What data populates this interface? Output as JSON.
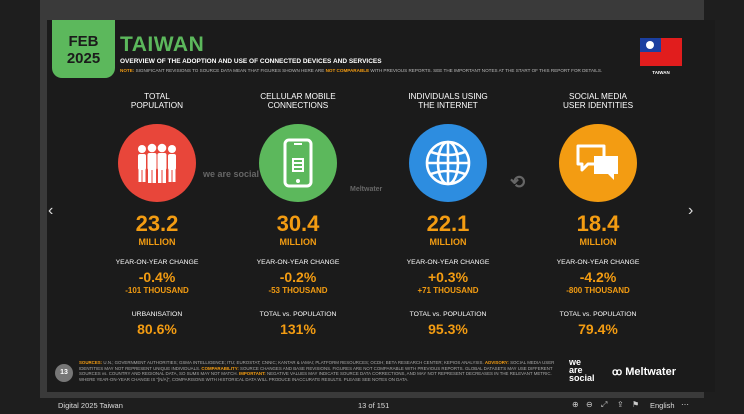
{
  "header": {
    "date_line1": "FEB",
    "date_line2": "2025",
    "title": "TAIWAN",
    "subtitle": "OVERVIEW OF THE ADOPTION AND USE OF CONNECTED DEVICES AND SERVICES",
    "note_prefix": "NOTE:",
    "note_text": "SIGNIFICANT REVISIONS TO SOURCE DATA MEAN THAT FIGURES SHOWN HERE ARE",
    "note_highlight": "NOT COMPARABLE",
    "note_suffix": "WITH PREVIOUS REPORTS. SEE THE IMPORTANT NOTES AT THE START OF THIS REPORT FOR DETAILS.",
    "flag_label": "TAIWAN"
  },
  "columns": [
    {
      "heading": "TOTAL\nPOPULATION",
      "icon": "people-icon",
      "color": "#e8463a",
      "value": "23.2",
      "unit": "MILLION",
      "change_label": "YEAR-ON-YEAR CHANGE",
      "change_pct": "-0.4%",
      "change_abs": "-101 THOUSAND",
      "ratio_label": "URBANISATION",
      "ratio": "80.6%"
    },
    {
      "heading": "CELLULAR MOBILE\nCONNECTIONS",
      "icon": "mobile-phone-icon",
      "color": "#5cb85c",
      "value": "30.4",
      "unit": "MILLION",
      "change_label": "YEAR-ON-YEAR CHANGE",
      "change_pct": "-0.2%",
      "change_abs": "-53 THOUSAND",
      "ratio_label": "TOTAL vs. POPULATION",
      "ratio": "131%"
    },
    {
      "heading": "INDIVIDUALS USING\nTHE INTERNET",
      "icon": "globe-icon",
      "color": "#2d8de0",
      "value": "22.1",
      "unit": "MILLION",
      "change_label": "YEAR-ON-YEAR CHANGE",
      "change_pct": "+0.3%",
      "change_abs": "+71 THOUSAND",
      "ratio_label": "TOTAL vs. POPULATION",
      "ratio": "95.3%"
    },
    {
      "heading": "SOCIAL MEDIA\nUSER IDENTITIES",
      "icon": "chat-bubbles-icon",
      "color": "#f39c12",
      "value": "18.4",
      "unit": "MILLION",
      "change_label": "YEAR-ON-YEAR CHANGE",
      "change_pct": "-4.2%",
      "change_abs": "-800 THOUSAND",
      "ratio_label": "TOTAL vs. POPULATION",
      "ratio": "79.4%"
    }
  ],
  "watermarks": {
    "we_are_social": "we are social",
    "meltwater": "Meltwater"
  },
  "footer": {
    "page_number": "13",
    "sources_label": "SOURCES:",
    "sources_text": "U.N.; GOVERNMENT AUTHORITIES; GSMA INTELLIGENCE; ITU; EUROSTAT; CNNIC; KANTAR & IAMAI; PLATFORM RESOURCES; OCDH; BETA RESEARCH CENTER; KEPIOS ANALYSIS.",
    "advisory_label": "ADVISORY:",
    "advisory_text": "SOCIAL MEDIA USER IDENTITIES MAY NOT REPRESENT UNIQUE INDIVIDUALS.",
    "comparability_label": "COMPARABILITY:",
    "comparability_text": "SOURCE CHANGES AND BASE REVISIONS. FIGURES ARE NOT COMPARABLE WITH PREVIOUS REPORTS. GLOBAL DATASETS MAY USE DIFFERENT SOURCES vs. COUNTRY AND REGIONAL DATA, SO SUMS MAY NOT MATCH.",
    "important_label": "IMPORTANT:",
    "important_text": "NEGATIVE VALUES MAY INDICATE SOURCE DATA CORRECTIONS, AND MAY NOT REPRESENT DECREASES IN THE RELEVANT METRIC. WHERE YEAR-ON-YEAR CHANGE IS \"[N/A]\", COMPARISONS WITH HISTORICAL DATA WILL PRODUCE INACCURATE RESULTS. PLEASE SEE NOTES ON DATA.",
    "logo_we": "we",
    "logo_are": "are",
    "logo_social": "social",
    "logo_meltwater": "Meltwater"
  },
  "viewer": {
    "doc_title": "Digital 2025 Taiwan",
    "page_indicator": "13 of 151",
    "language": "English"
  }
}
